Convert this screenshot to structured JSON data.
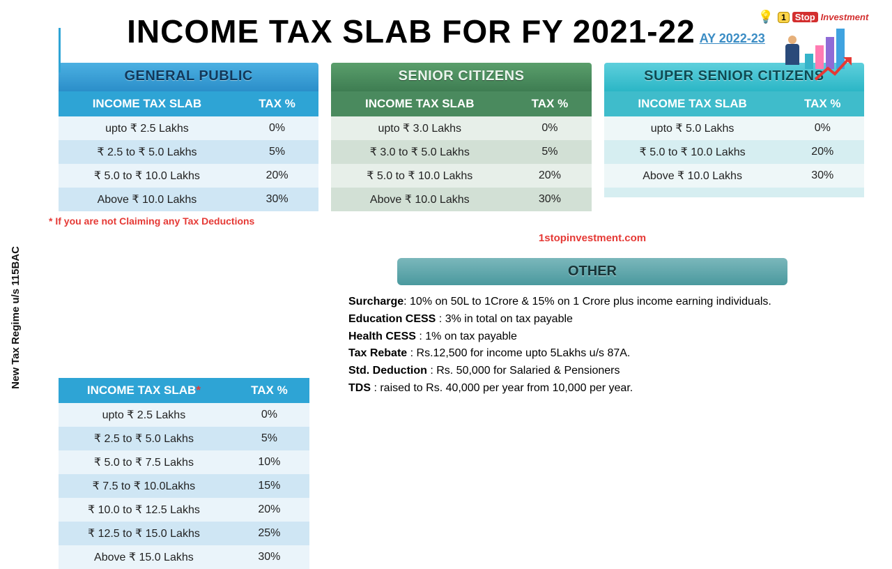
{
  "title": "INCOME TAX SLAB FOR FY 2021-22",
  "subtitle": "AY 2022-23",
  "logo": {
    "coin": "1",
    "stop": "Stop",
    "inv": "Investment"
  },
  "logo_bars": [
    {
      "h": 22,
      "c": "#35b3c9"
    },
    {
      "h": 34,
      "c": "#ff7bb2"
    },
    {
      "h": 46,
      "c": "#8f6bd6"
    },
    {
      "h": 58,
      "c": "#3fa3e0"
    }
  ],
  "headers": {
    "general": "GENERAL PUBLIC",
    "senior": "SENIOR CITIZENS",
    "super": "SUPER SENIOR CITIZENS",
    "other": "OTHER"
  },
  "col": {
    "slab": "INCOME TAX SLAB",
    "slab_star": "INCOME TAX SLAB*",
    "tax": "TAX %"
  },
  "general_rows": [
    {
      "slab": "upto ₹ 2.5 Lakhs",
      "tax": "0%"
    },
    {
      "slab": "₹ 2.5 to ₹ 5.0 Lakhs",
      "tax": "5%"
    },
    {
      "slab": "₹ 5.0 to ₹ 10.0 Lakhs",
      "tax": "20%"
    },
    {
      "slab": "Above ₹ 10.0 Lakhs",
      "tax": "30%"
    }
  ],
  "senior_rows": [
    {
      "slab": "upto ₹ 3.0 Lakhs",
      "tax": "0%"
    },
    {
      "slab": "₹ 3.0 to ₹ 5.0 Lakhs",
      "tax": "5%"
    },
    {
      "slab": "₹ 5.0 to ₹ 10.0 Lakhs",
      "tax": "20%"
    },
    {
      "slab": "Above ₹ 10.0 Lakhs",
      "tax": "30%"
    }
  ],
  "super_rows": [
    {
      "slab": "upto ₹ 5.0 Lakhs",
      "tax": "0%"
    },
    {
      "slab": "₹ 5.0 to ₹ 10.0 Lakhs",
      "tax": "20%"
    },
    {
      "slab": "Above ₹ 10.0 Lakhs",
      "tax": "30%"
    },
    {
      "slab": "",
      "tax": ""
    }
  ],
  "note": "* If you are not Claiming any Tax Deductions",
  "vlabel": "New Tax Regime u/s 115BAC",
  "new_rows": [
    {
      "slab": "upto ₹ 2.5 Lakhs",
      "tax": "0%"
    },
    {
      "slab": "₹ 2.5 to ₹ 5.0 Lakhs",
      "tax": "5%"
    },
    {
      "slab": "₹ 5.0 to ₹ 7.5 Lakhs",
      "tax": "10%"
    },
    {
      "slab": "₹ 7.5 to ₹ 10.0Lakhs",
      "tax": "15%"
    },
    {
      "slab": "₹ 10.0 to ₹ 12.5 Lakhs",
      "tax": "20%"
    },
    {
      "slab": "₹ 12.5 to ₹ 15.0 Lakhs",
      "tax": "25%"
    },
    {
      "slab": "Above ₹ 15.0 Lakhs",
      "tax": "30%"
    }
  ],
  "website": "1stopinvestment.com",
  "other": [
    {
      "k": "Surcharge",
      "v": ": 10% on 50L to 1Crore & 15% on 1 Crore plus income earning individuals."
    },
    {
      "k": "Education CESS",
      "v": " : 3% in total on tax payable"
    },
    {
      "k": "Health CESS",
      "v": " : 1% on tax payable"
    },
    {
      "k": "Tax Rebate",
      "v": "  : Rs.12,500 for income upto 5Lakhs u/s 87A."
    },
    {
      "k": "Std. Deduction",
      "v": " : Rs. 50,000 for Salaried & Pensioners"
    },
    {
      "k": "TDS",
      "v": " : raised to Rs. 40,000 per year from 10,000 per year."
    }
  ]
}
